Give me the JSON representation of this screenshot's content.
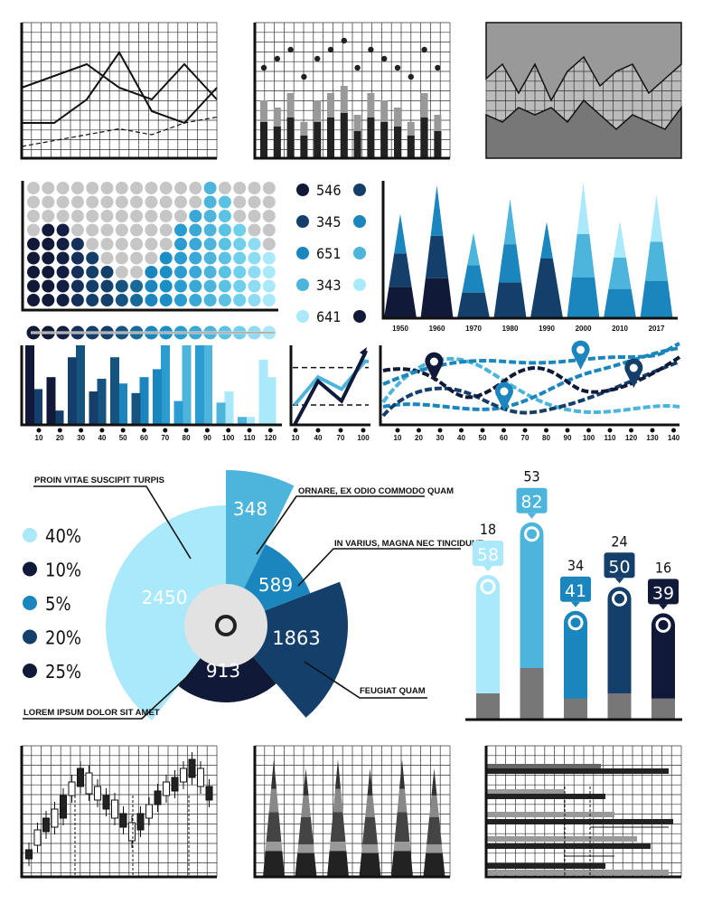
{
  "colors": {
    "navy": "#101a38",
    "dark": "#143f6b",
    "mid": "#1a86bd",
    "light": "#4db4dc",
    "pale": "#a9e9fb",
    "gray": "#c6c6c6",
    "inner": "#e2e2e2"
  },
  "chart_data": [
    {
      "type": "line",
      "panel": "top-left",
      "series": [
        {
          "values": [
            6,
            7,
            8,
            6,
            5,
            8,
            5
          ]
        },
        {
          "values": [
            3,
            3,
            5,
            9,
            4,
            3,
            6
          ]
        },
        {
          "values": [
            1,
            1.5,
            2,
            2.5,
            2,
            3,
            3.5
          ]
        }
      ]
    },
    {
      "type": "bar",
      "panel": "top-center",
      "values": [
        8,
        7,
        9,
        5,
        8,
        9,
        10,
        6,
        9,
        8,
        7,
        5,
        9,
        6
      ],
      "markers": [
        10,
        11,
        12,
        9,
        11,
        12,
        13,
        10,
        12,
        11,
        10,
        9,
        12,
        10
      ]
    },
    {
      "type": "area",
      "panel": "top-right",
      "series": [
        {
          "values": [
            11,
            13,
            9,
            13,
            8,
            12,
            14,
            10,
            12,
            13,
            9,
            11,
            13
          ]
        },
        {
          "values": [
            6,
            5,
            7,
            6,
            7,
            5,
            8,
            6,
            4,
            6,
            5,
            4,
            7
          ]
        }
      ]
    },
    {
      "type": "dot-matrix",
      "legend": [
        {
          "value": "546",
          "color": "#101a38",
          "color2": "#143f6b"
        },
        {
          "value": "345",
          "color": "#143f6b",
          "color2": "#1a86bd"
        },
        {
          "value": "651",
          "color": "#1a86bd",
          "color2": "#4db4dc"
        },
        {
          "value": "343",
          "color": "#4db4dc",
          "color2": "#a9e9fb"
        },
        {
          "value": "641",
          "color": "#a9e9fb",
          "color2": "#101a38"
        }
      ],
      "column_counts": [
        5,
        6,
        6,
        5,
        4,
        3,
        2,
        2,
        3,
        4,
        6,
        7,
        9,
        8,
        6,
        5,
        4
      ],
      "rows": 9
    },
    {
      "type": "bar",
      "subtype": "stacked-triangles",
      "categories": [
        "1950",
        "1960",
        "1970",
        "1980",
        "1990",
        "2000",
        "2010",
        "2017"
      ],
      "heights": [
        77,
        98,
        63,
        88,
        71,
        100,
        72,
        91
      ],
      "bands": [
        [
          "#101a38",
          "#143f6b",
          "#1a86bd"
        ],
        [
          "#101a38",
          "#143f6b",
          "#1a86bd"
        ],
        [
          "#143f6b",
          "#1a86bd",
          "#4db4dc"
        ],
        [
          "#143f6b",
          "#1a86bd",
          "#4db4dc"
        ],
        [
          "#143f6b",
          "#143f6b",
          "#1a86bd"
        ],
        [
          "#1a86bd",
          "#4db4dc",
          "#a9e9fb"
        ],
        [
          "#1a86bd",
          "#4db4dc",
          "#a9e9fb"
        ],
        [
          "#1a86bd",
          "#4db4dc",
          "#a9e9fb"
        ]
      ]
    },
    {
      "type": "bar",
      "x_ticks": [
        "10",
        "20",
        "30",
        "40",
        "50",
        "60",
        "70",
        "80",
        "90",
        "100",
        "110",
        "120"
      ],
      "series": [
        {
          "values": [
            100,
            60,
            85,
            42,
            85,
            40,
            70,
            30,
            100,
            28,
            10,
            82
          ]
        },
        {
          "values": [
            45,
            18,
            100,
            58,
            52,
            60,
            100,
            100,
            100,
            42,
            10,
            60
          ]
        }
      ]
    },
    {
      "type": "line",
      "x_ticks": [
        "10",
        "40",
        "70",
        "100"
      ],
      "series": [
        {
          "values": [
            0,
            55,
            30,
            90
          ]
        },
        {
          "values": [
            25,
            60,
            45,
            80
          ]
        }
      ],
      "reference_lines": [
        72,
        25
      ]
    },
    {
      "type": "line",
      "subtype": "dashed-waves",
      "x_ticks": [
        "10",
        "20",
        "30",
        "40",
        "50",
        "60",
        "70",
        "80",
        "90",
        "100",
        "110",
        "120",
        "130",
        "140"
      ],
      "pins": [
        {
          "x": 24,
          "color": "#101a38"
        },
        {
          "x": 57,
          "color": "#1a86bd"
        },
        {
          "x": 93,
          "color": "#1a86bd"
        },
        {
          "x": 118,
          "color": "#143f6b"
        }
      ]
    },
    {
      "type": "pie",
      "subtype": "polar-area",
      "legend": [
        {
          "label": "40%",
          "color": "#a9e9fb"
        },
        {
          "label": "10%",
          "color": "#101a38"
        },
        {
          "label": "5%",
          "color": "#1a86bd"
        },
        {
          "label": "20%",
          "color": "#143f6b"
        },
        {
          "label": "25%",
          "color": "#101a38"
        }
      ],
      "slices": [
        {
          "value": "2450",
          "color": "#a9e9fb",
          "caption": "PROIN VITAE SUSCIPIT TURPIS"
        },
        {
          "value": "348",
          "color": "#4db4dc",
          "caption": "ORNARE, EX ODIO COMMODO QUAM"
        },
        {
          "value": "589",
          "color": "#1a86bd",
          "caption": "IN VARIUS, MAGNA NEC TINCIDUNT"
        },
        {
          "value": "1863",
          "color": "#143f6b",
          "caption": "FEUGIAT QUAM"
        },
        {
          "value": "913",
          "color": "#101a38",
          "caption": "LOREM IPSUM DOLOR SIT AMET"
        }
      ]
    },
    {
      "type": "bar",
      "subtype": "thermometer",
      "bars": [
        {
          "top": "18",
          "value": "58",
          "color": "#a9e9fb",
          "level": 60,
          "base": 10
        },
        {
          "top": "53",
          "value": "82",
          "color": "#4db4dc",
          "level": 82,
          "base": 20
        },
        {
          "top": "34",
          "value": "41",
          "color": "#1a86bd",
          "level": 45,
          "base": 8
        },
        {
          "top": "24",
          "value": "50",
          "color": "#143f6b",
          "level": 55,
          "base": 10
        },
        {
          "top": "16",
          "value": "39",
          "color": "#101a38",
          "level": 44,
          "base": 8
        }
      ]
    },
    {
      "type": "candlestick",
      "panel": "bottom-left"
    },
    {
      "type": "bar",
      "subtype": "cones",
      "panel": "bottom-center"
    },
    {
      "type": "bar",
      "subtype": "gantt",
      "panel": "bottom-right"
    }
  ]
}
